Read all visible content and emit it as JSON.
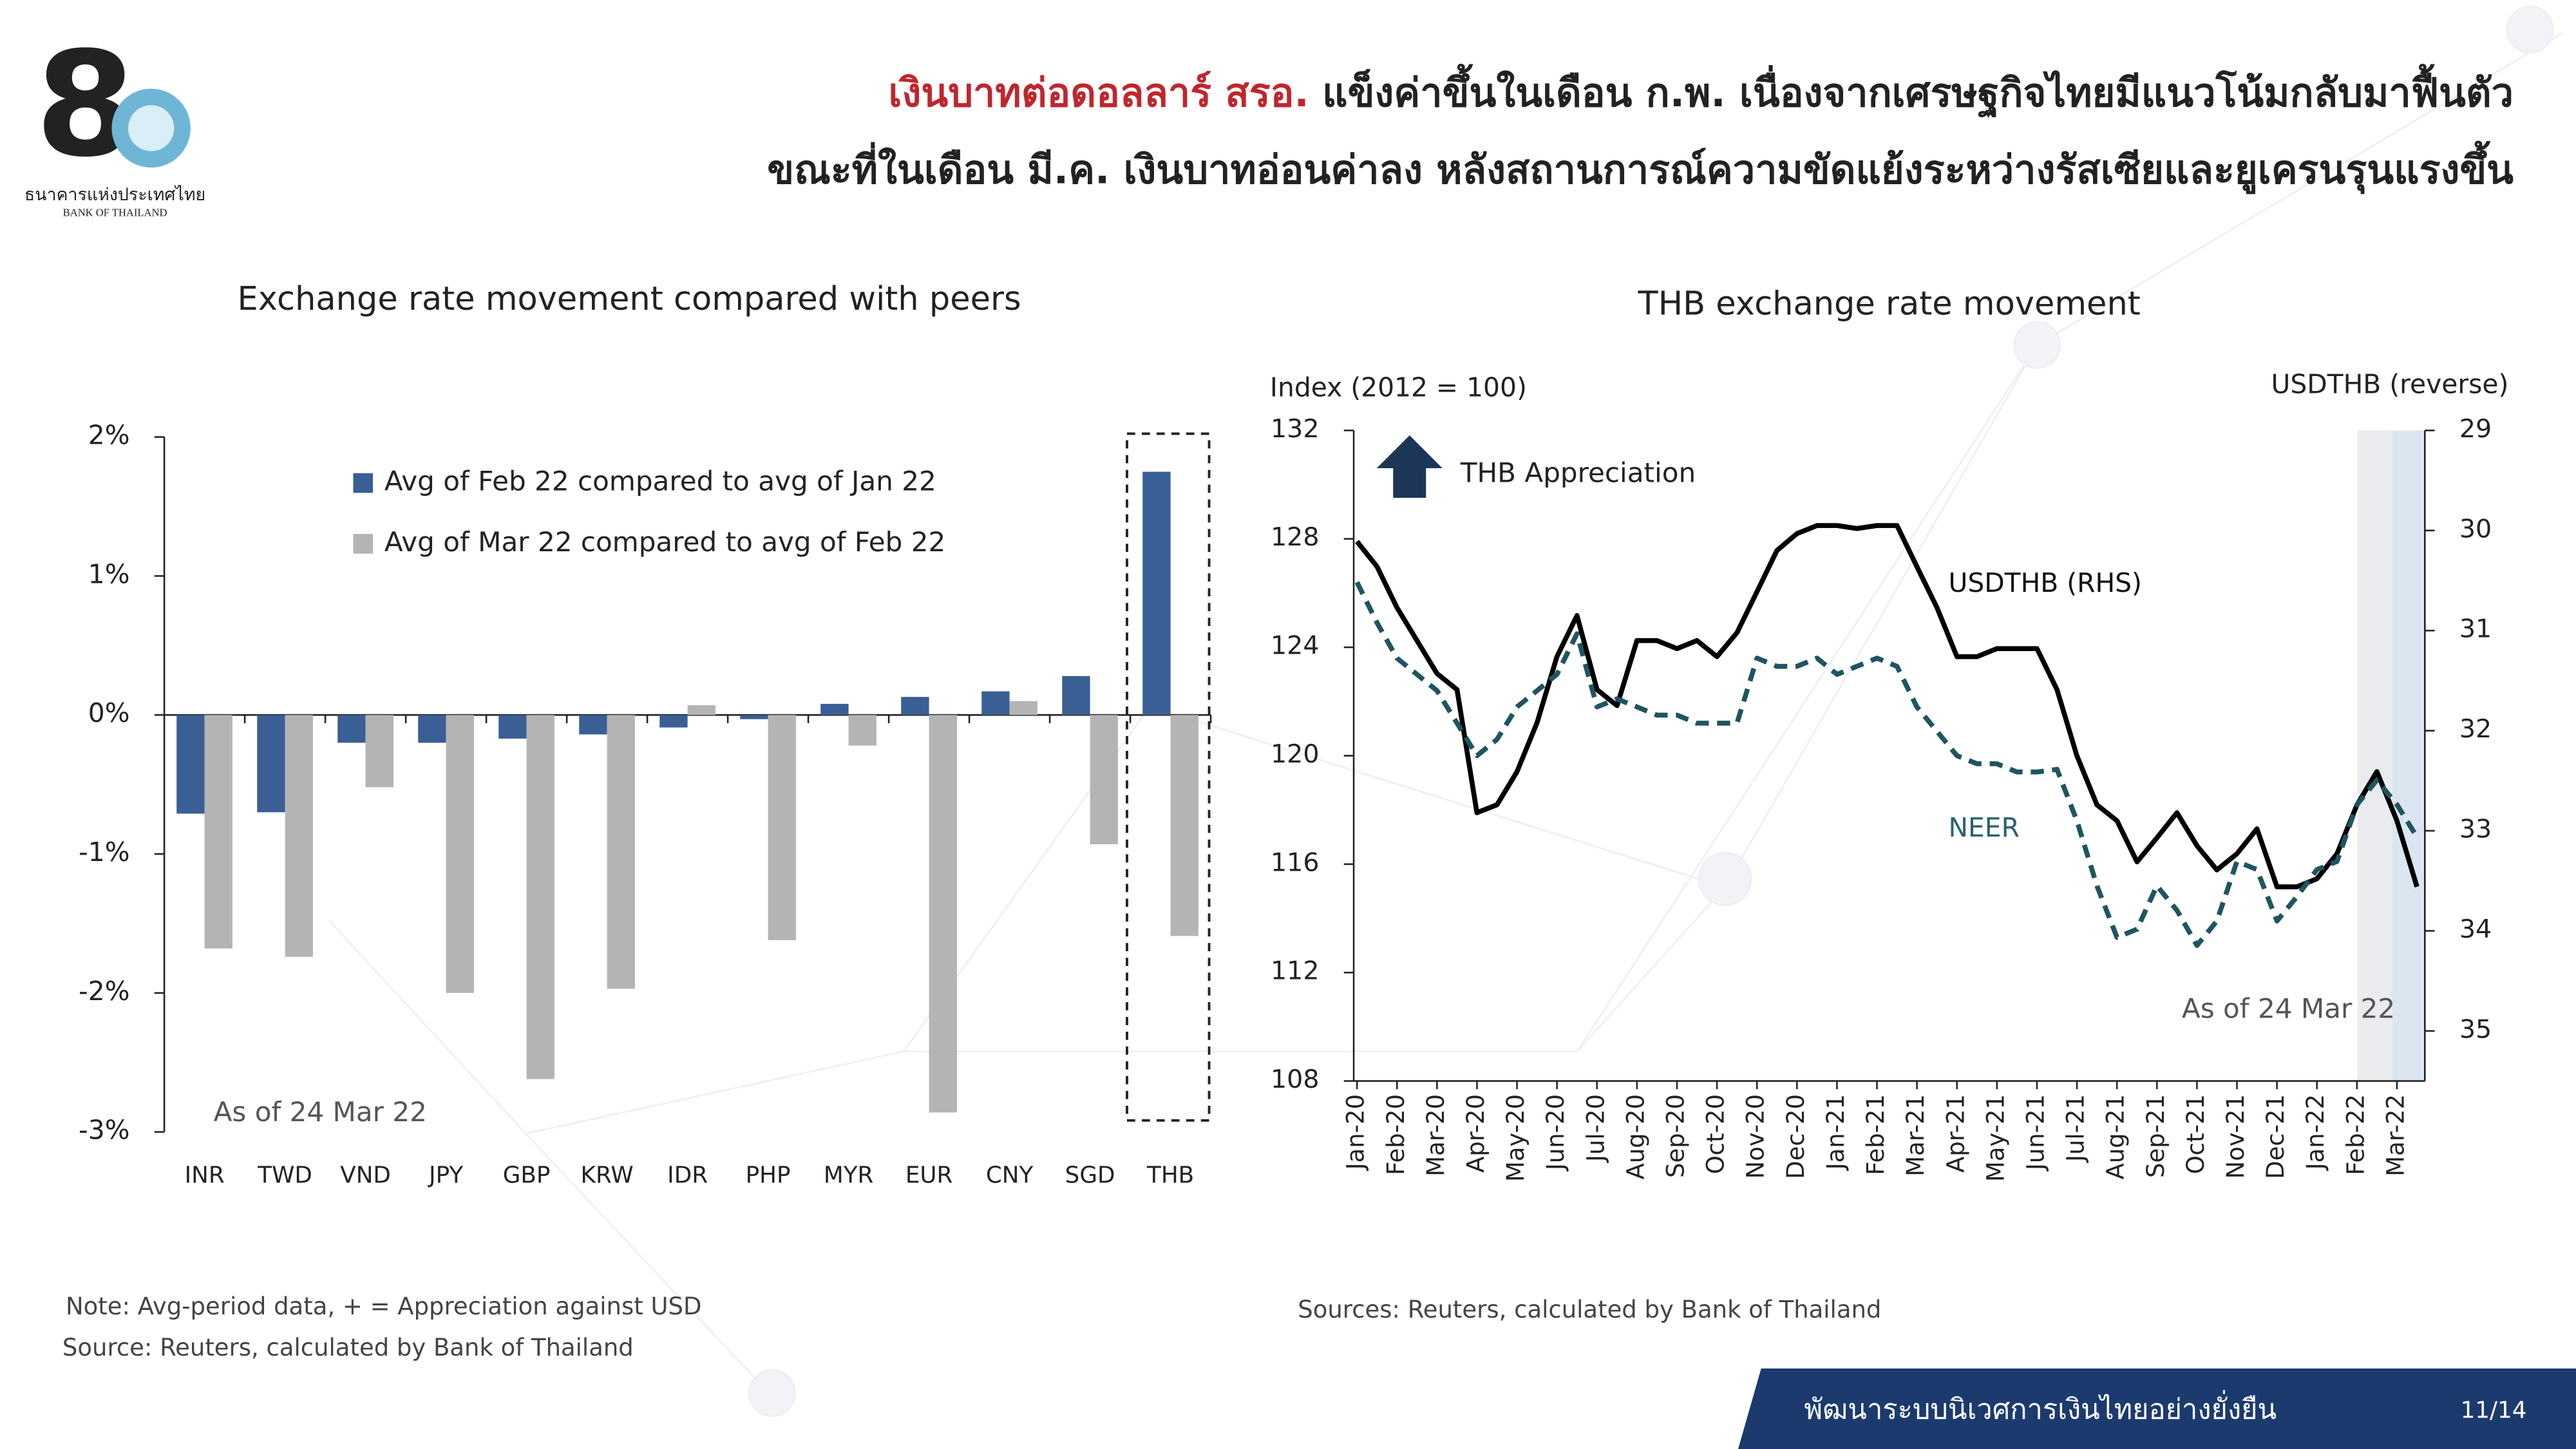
{
  "header": {
    "title_highlight": "เงินบาทต่อดอลลาร์ สรอ.",
    "title_rest": "แข็งค่าขึ้นในเดือน ก.พ. เนื่องจากเศรษฐกิจไทยมีแนวโน้มกลับมาฟื้นตัว",
    "title_line2": "ขณะที่ในเดือน มี.ค. เงินบาทอ่อนค่าลง หลังสถานการณ์ความขัดแย้งระหว่างรัสเซียและยูเครนรุนแรงขึ้น",
    "logo_name": "ธนาคารแห่งประเทศไทย",
    "logo_name_en": "BANK OF THAILAND"
  },
  "footer": {
    "slogan": "พัฒนาระบบนิเวศการเงินไทยอย่างยั่งยืน",
    "page": "11/14"
  },
  "chart_data": [
    {
      "type": "bar",
      "title": "Exchange rate movement compared with peers",
      "categories": [
        "INR",
        "TWD",
        "VND",
        "JPY",
        "GBP",
        "KRW",
        "IDR",
        "PHP",
        "MYR",
        "EUR",
        "CNY",
        "SGD",
        "THB"
      ],
      "series": [
        {
          "name": "Avg of Feb 22 compared to avg of Jan 22",
          "color": "#3a5f95",
          "values": [
            -0.71,
            -0.7,
            -0.2,
            -0.2,
            -0.17,
            -0.14,
            -0.09,
            -0.03,
            0.08,
            0.13,
            0.17,
            0.28,
            1.75
          ]
        },
        {
          "name": "Avg of Mar 22 compared to avg of Feb 22",
          "color": "#b4b4b4",
          "values": [
            -1.68,
            -1.74,
            -0.52,
            -2.0,
            -2.62,
            -1.97,
            0.07,
            -1.62,
            -0.22,
            -2.86,
            0.1,
            -0.93,
            -1.59
          ]
        }
      ],
      "ylim": [
        -3,
        2
      ],
      "yticks": [
        {
          "value": -3,
          "label": "-3%"
        },
        {
          "value": -2,
          "label": "-2%"
        },
        {
          "value": -1,
          "label": "-1%"
        },
        {
          "value": 0,
          "label": "0%"
        },
        {
          "value": 1,
          "label": "1%"
        },
        {
          "value": 2,
          "label": "2%"
        }
      ],
      "annotation": "As of 24 Mar 22",
      "note": "Note: Avg-period data, + = Appreciation against USD",
      "source": "Source: Reuters, calculated by Bank of Thailand"
    },
    {
      "type": "line",
      "title": "THB exchange rate movement",
      "y_label": "Index (2012 = 100)",
      "y2_label": "USDTHB (reverse)",
      "annotations": [
        "THB Appreciation",
        "As of 24 Mar 22"
      ],
      "categories": [
        "Jan-20",
        null,
        "Feb-20",
        null,
        "Mar-20",
        null,
        "Apr-20",
        null,
        "May-20",
        null,
        "Jun-20",
        null,
        "Jul-20",
        null,
        "Aug-20",
        null,
        "Sep-20",
        null,
        "Oct-20",
        null,
        "Nov-20",
        null,
        "Dec-20",
        null,
        "Jan-21",
        null,
        "Feb-21",
        null,
        "Mar-21",
        null,
        "Apr-21",
        null,
        "May-21",
        null,
        "Jun-21",
        null,
        "Jul-21",
        null,
        "Aug-21",
        null,
        "Sep-21",
        null,
        "Oct-21",
        null,
        "Nov-21",
        null,
        "Dec-21",
        null,
        "Jan-22",
        null,
        "Feb-22",
        null,
        "Mar-22",
        null
      ],
      "series": [
        {
          "name": "USDTHB (RHS)",
          "color": "#000000",
          "axis": "y2",
          "dashed": false,
          "values": [
            30.11,
            30.36,
            30.77,
            31.1,
            31.43,
            31.59,
            32.82,
            32.74,
            32.41,
            31.92,
            31.26,
            30.85,
            31.59,
            31.75,
            31.1,
            31.1,
            31.18,
            31.1,
            31.26,
            31.02,
            30.61,
            30.2,
            30.03,
            29.95,
            29.95,
            29.98,
            29.95,
            29.95,
            30.36,
            30.77,
            31.26,
            31.26,
            31.18,
            31.18,
            31.18,
            31.59,
            32.25,
            32.74,
            32.9,
            33.31,
            33.07,
            32.82,
            33.15,
            33.39,
            33.23,
            32.98,
            33.56,
            33.56,
            33.48,
            33.23,
            32.74,
            32.41,
            32.9,
            33.56
          ]
        },
        {
          "name": "NEER",
          "color": "#1f5560",
          "axis": "y",
          "dashed": true,
          "values": [
            126.4,
            124.9,
            123.6,
            123.0,
            122.4,
            121.2,
            120.0,
            120.6,
            121.8,
            122.4,
            123.0,
            124.5,
            121.8,
            122.1,
            121.8,
            121.5,
            121.5,
            121.2,
            121.2,
            121.2,
            123.6,
            123.3,
            123.3,
            123.6,
            123.0,
            123.3,
            123.6,
            123.3,
            121.8,
            120.9,
            120.0,
            119.7,
            119.7,
            119.4,
            119.4,
            119.5,
            117.6,
            115.2,
            113.3,
            113.6,
            115.2,
            114.3,
            113.0,
            113.9,
            116.1,
            115.8,
            113.9,
            114.8,
            115.8,
            116.1,
            118.2,
            119.1,
            118.2,
            117.0
          ]
        }
      ],
      "ylim": [
        108,
        132
      ],
      "yticks": [
        108,
        112,
        116,
        120,
        124,
        128,
        132
      ],
      "y2lim": [
        35.5,
        29
      ],
      "y2ticks": [
        29,
        30,
        31,
        32,
        33,
        34,
        35
      ],
      "source": "Sources: Reuters, calculated by Bank of Thailand"
    }
  ]
}
